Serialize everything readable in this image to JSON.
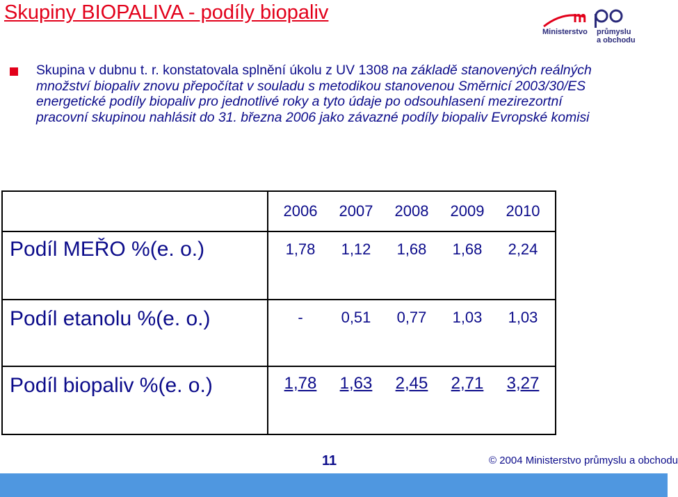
{
  "slide": {
    "title": "Skupiny BIOPALIVA  - podíly biopaliv",
    "logo": {
      "line1": "Ministerstvo",
      "line2": "průmyslu",
      "line3": "a obchodu",
      "accent_color": "#e2001a",
      "brand_color": "#2a2a7a"
    },
    "paragraph": {
      "part1": "Skupina v dubnu t. r. konstatovala splnění úkolu z UV 1308 ",
      "part2": "na základě stanovených reálných množství biopaliv znovu přepočítat v souladu s metodikou stanovenou Směrnicí 2003/30/ES energetické podíly biopaliv pro jednotlivé roky a tyto údaje po odsouhlasení mezirezortní pracovní skupinou nahlásit do 31. března 2006 jako závazné podíly biopaliv Evropské komisi"
    },
    "table": {
      "years": [
        "2006",
        "2007",
        "2008",
        "2009",
        "2010"
      ],
      "rows": [
        {
          "label": "Podíl MEŘO %(e. o.)",
          "values": [
            "1,78",
            "1,12",
            "1,68",
            "1,68",
            "2,24"
          ]
        },
        {
          "label": "Podíl etanolu %(e. o.)",
          "values": [
            "-",
            "0,51",
            "0,77",
            "1,03",
            "1,03"
          ]
        },
        {
          "label": "Podíl biopaliv %(e. o.)",
          "values": [
            "1,78",
            "1,63",
            "2,45",
            "2,71",
            "3,27"
          ]
        }
      ]
    },
    "footer": {
      "page_number": "11",
      "copyright": "© 2004 Ministerstvo průmyslu a obchodu",
      "bar_color": "#4f97e0"
    }
  }
}
